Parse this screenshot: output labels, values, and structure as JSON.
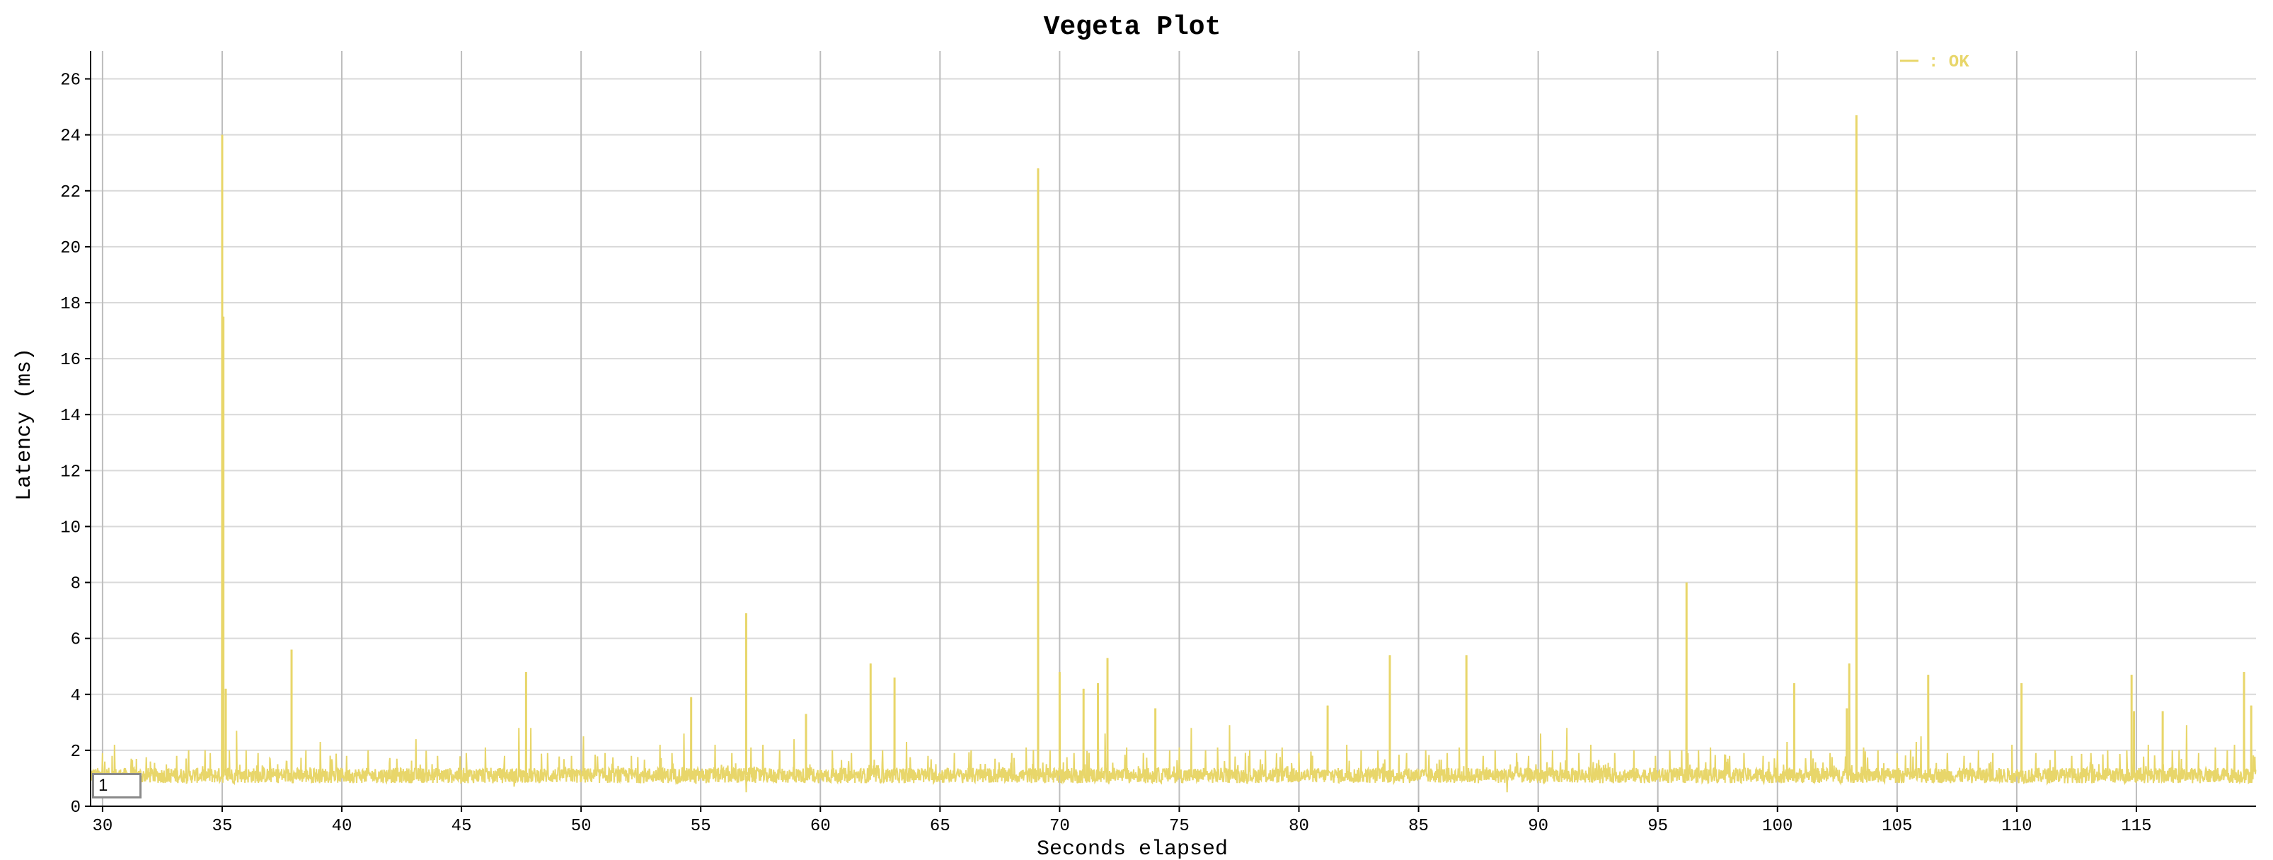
{
  "chart_data": {
    "type": "line",
    "title": "Vegeta Plot",
    "xlabel": "Seconds elapsed",
    "ylabel": "Latency (ms)",
    "xlim": [
      29.5,
      120
    ],
    "ylim": [
      0,
      27
    ],
    "x_ticks": [
      30,
      35,
      40,
      45,
      50,
      55,
      60,
      65,
      70,
      75,
      80,
      85,
      90,
      95,
      100,
      105,
      110,
      115
    ],
    "y_ticks": [
      0,
      2,
      4,
      6,
      8,
      10,
      12,
      14,
      16,
      18,
      20,
      22,
      24,
      26
    ],
    "grid": true,
    "legend_position": "top-right",
    "series": [
      {
        "name": "OK",
        "color": "#e8d66a",
        "baseline_ms": 1.1,
        "spikes": [
          [
            30.0,
            1.9
          ],
          [
            30.4,
            1.8
          ],
          [
            30.5,
            2.2
          ],
          [
            31.2,
            1.7
          ],
          [
            32.0,
            1.6
          ],
          [
            33.1,
            1.8
          ],
          [
            33.6,
            2.0
          ],
          [
            34.5,
            1.9
          ],
          [
            35.0,
            24.0
          ],
          [
            35.05,
            17.5
          ],
          [
            35.15,
            4.2
          ],
          [
            35.3,
            2.0
          ],
          [
            35.6,
            2.7
          ],
          [
            36.0,
            2.0
          ],
          [
            36.5,
            1.9
          ],
          [
            37.0,
            1.7
          ],
          [
            37.9,
            5.6
          ],
          [
            38.5,
            2.0
          ],
          [
            39.1,
            2.3
          ],
          [
            40.2,
            1.8
          ],
          [
            41.1,
            2.0
          ],
          [
            42.3,
            1.7
          ],
          [
            43.1,
            2.4
          ],
          [
            44.0,
            1.8
          ],
          [
            45.2,
            1.9
          ],
          [
            46.0,
            2.1
          ],
          [
            46.8,
            1.8
          ],
          [
            47.4,
            2.8
          ],
          [
            47.7,
            4.8
          ],
          [
            47.9,
            2.8
          ],
          [
            48.6,
            1.9
          ],
          [
            49.6,
            1.8
          ],
          [
            50.1,
            2.5
          ],
          [
            51.0,
            1.9
          ],
          [
            52.1,
            1.8
          ],
          [
            53.3,
            2.2
          ],
          [
            53.8,
            1.9
          ],
          [
            54.3,
            2.6
          ],
          [
            54.6,
            3.9
          ],
          [
            54.8,
            2.5
          ],
          [
            55.6,
            2.2
          ],
          [
            56.3,
            1.9
          ],
          [
            56.9,
            6.9
          ],
          [
            57.1,
            2.1
          ],
          [
            57.6,
            2.2
          ],
          [
            58.3,
            2.0
          ],
          [
            58.9,
            2.4
          ],
          [
            59.4,
            3.3
          ],
          [
            60.5,
            2.0
          ],
          [
            61.3,
            1.9
          ],
          [
            62.1,
            5.1
          ],
          [
            62.6,
            2.0
          ],
          [
            63.1,
            4.6
          ],
          [
            63.6,
            2.3
          ],
          [
            64.5,
            1.8
          ],
          [
            65.6,
            1.9
          ],
          [
            66.3,
            2.0
          ],
          [
            67.3,
            1.7
          ],
          [
            68.0,
            1.9
          ],
          [
            68.6,
            2.1
          ],
          [
            69.1,
            22.8
          ],
          [
            69.6,
            2.0
          ],
          [
            70.0,
            4.8
          ],
          [
            70.6,
            1.9
          ],
          [
            71.0,
            4.2
          ],
          [
            71.6,
            4.4
          ],
          [
            71.9,
            2.6
          ],
          [
            72.0,
            5.3
          ],
          [
            72.8,
            2.1
          ],
          [
            73.5,
            1.9
          ],
          [
            74.0,
            3.5
          ],
          [
            74.6,
            2.0
          ],
          [
            75.0,
            2.1
          ],
          [
            75.5,
            2.8
          ],
          [
            76.1,
            2.0
          ],
          [
            76.6,
            2.1
          ],
          [
            77.1,
            2.9
          ],
          [
            77.9,
            1.8
          ],
          [
            78.6,
            2.0
          ],
          [
            79.3,
            2.1
          ],
          [
            80.0,
            1.9
          ],
          [
            81.2,
            3.6
          ],
          [
            82.0,
            2.2
          ],
          [
            82.6,
            2.0
          ],
          [
            83.3,
            2.0
          ],
          [
            83.8,
            5.4
          ],
          [
            84.5,
            1.9
          ],
          [
            85.3,
            2.0
          ],
          [
            86.2,
            1.9
          ],
          [
            86.7,
            2.1
          ],
          [
            87.0,
            5.4
          ],
          [
            87.7,
            1.8
          ],
          [
            88.2,
            2.0
          ],
          [
            89.1,
            1.9
          ],
          [
            89.6,
            1.8
          ],
          [
            90.1,
            2.6
          ],
          [
            90.6,
            2.0
          ],
          [
            91.2,
            2.8
          ],
          [
            91.7,
            1.9
          ],
          [
            92.2,
            2.2
          ],
          [
            93.2,
            1.9
          ],
          [
            94.0,
            2.0
          ],
          [
            94.9,
            1.8
          ],
          [
            95.5,
            2.0
          ],
          [
            96.0,
            2.0
          ],
          [
            96.2,
            8.0
          ],
          [
            96.7,
            2.0
          ],
          [
            97.2,
            2.1
          ],
          [
            98.0,
            1.8
          ],
          [
            98.6,
            1.9
          ],
          [
            99.4,
            1.8
          ],
          [
            100.0,
            2.0
          ],
          [
            100.4,
            2.3
          ],
          [
            100.7,
            4.4
          ],
          [
            101.4,
            2.0
          ],
          [
            102.2,
            1.9
          ],
          [
            102.9,
            3.5
          ],
          [
            103.0,
            5.1
          ],
          [
            103.3,
            24.7
          ],
          [
            103.6,
            2.1
          ],
          [
            104.2,
            2.0
          ],
          [
            105.0,
            1.9
          ],
          [
            105.8,
            2.3
          ],
          [
            106.0,
            2.5
          ],
          [
            106.3,
            4.7
          ],
          [
            107.1,
            1.9
          ],
          [
            107.8,
            1.8
          ],
          [
            108.4,
            2.0
          ],
          [
            109.0,
            1.9
          ],
          [
            109.8,
            2.2
          ],
          [
            110.2,
            4.4
          ],
          [
            110.8,
            1.9
          ],
          [
            111.6,
            2.0
          ],
          [
            112.3,
            1.8
          ],
          [
            113.1,
            1.9
          ],
          [
            113.8,
            2.0
          ],
          [
            114.6,
            2.0
          ],
          [
            114.8,
            4.7
          ],
          [
            114.9,
            3.4
          ],
          [
            115.5,
            2.2
          ],
          [
            116.1,
            3.4
          ],
          [
            116.5,
            2.0
          ],
          [
            117.1,
            2.9
          ],
          [
            117.6,
            1.9
          ],
          [
            118.3,
            2.1
          ],
          [
            118.8,
            2.0
          ],
          [
            119.1,
            2.2
          ],
          [
            119.5,
            4.8
          ],
          [
            119.8,
            3.6
          ],
          [
            120.0,
            2.6
          ]
        ],
        "dips": [
          [
            56.9,
            0.5
          ],
          [
            88.7,
            0.5
          ],
          [
            54.8,
            0.8
          ],
          [
            47.2,
            0.7
          ]
        ]
      }
    ]
  },
  "ui": {
    "stroke_input_value": "1"
  }
}
